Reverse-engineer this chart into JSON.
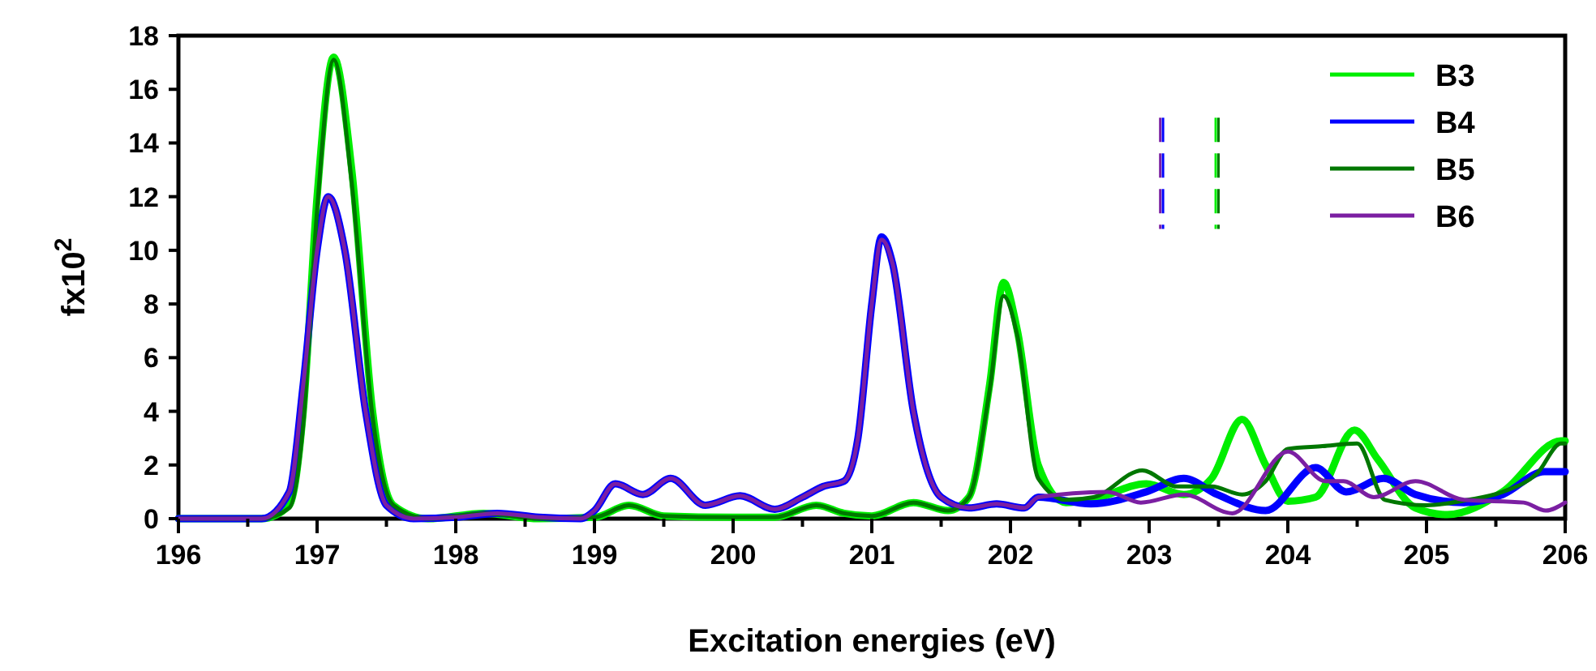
{
  "chart_data": {
    "type": "line",
    "xlabel": "Excitation energies (eV)",
    "ylabel": "fx10$^{2}$",
    "xlim": [
      196,
      206
    ],
    "ylim": [
      0,
      18
    ],
    "xticks": [
      196,
      {
        "value": 196.5,
        "label": null
      },
      197,
      {
        "value": 197.5,
        "label": null
      },
      198,
      {
        "value": 198.5,
        "label": null
      },
      199,
      {
        "value": 199.5,
        "label": null
      },
      200,
      {
        "value": 200.5,
        "label": null
      },
      201,
      {
        "value": 201.5,
        "label": null
      },
      202,
      {
        "value": 202.5,
        "label": null
      },
      203,
      {
        "value": 203.5,
        "label": null
      },
      204,
      {
        "value": 204.5,
        "label": null
      },
      205,
      {
        "value": 205.5,
        "label": null
      },
      206
    ],
    "yticks": [
      0,
      2,
      4,
      6,
      8,
      10,
      12,
      14,
      16,
      18
    ],
    "grid": false,
    "legend": "top right",
    "marker": "none",
    "line_style": "solid",
    "ref_lines": [
      {
        "axis": "x",
        "value": 203.08,
        "color": "#7b1fa2",
        "line_style": "dashed"
      },
      {
        "axis": "x",
        "value": 203.1,
        "color": "#0000ff",
        "line_style": "dashed"
      },
      {
        "axis": "x",
        "value": 203.48,
        "color": "#00ee00",
        "line_style": "dashed"
      },
      {
        "axis": "x",
        "value": 203.5,
        "color": "#007700",
        "line_style": "dashed"
      }
    ],
    "series": [
      {
        "name": "B3",
        "color": "#00ee00",
        "x": [
          196,
          196.6,
          196.8,
          196.9,
          197.0,
          197.12,
          197.25,
          197.4,
          197.55,
          197.8,
          198.2,
          198.6,
          199.0,
          199.25,
          199.5,
          200.0,
          200.3,
          200.6,
          200.8,
          201.0,
          201.3,
          201.55,
          201.7,
          201.85,
          201.95,
          202.05,
          202.2,
          202.4,
          202.58,
          202.98,
          203.25,
          203.45,
          203.67,
          203.84,
          204.0,
          204.2,
          204.48,
          204.65,
          204.92,
          205.15,
          205.55,
          205.97,
          206
        ],
        "values": [
          0,
          0,
          0.5,
          4,
          12,
          17.2,
          13,
          4,
          0.5,
          0,
          0.2,
          0,
          0.05,
          0.5,
          0.1,
          0.05,
          0.05,
          0.5,
          0.2,
          0.1,
          0.6,
          0.3,
          0.8,
          5,
          8.8,
          7,
          2,
          0.6,
          0.7,
          1.3,
          0.9,
          1.5,
          3.7,
          2.0,
          0.65,
          0.8,
          3.3,
          2.2,
          0.4,
          0.15,
          1.0,
          2.9,
          2.9
        ]
      },
      {
        "name": "B4",
        "color": "#0000ff",
        "x": [
          196,
          196.6,
          196.8,
          196.9,
          197.0,
          197.08,
          197.2,
          197.35,
          197.5,
          197.7,
          198.0,
          198.3,
          198.6,
          198.9,
          199.0,
          199.15,
          199.35,
          199.55,
          199.8,
          200.05,
          200.3,
          200.5,
          200.65,
          200.8,
          200.9,
          201.0,
          201.07,
          201.15,
          201.3,
          201.5,
          201.7,
          201.9,
          202.1,
          202.2,
          202.58,
          202.98,
          203.25,
          203.49,
          203.84,
          204.2,
          204.42,
          204.69,
          204.92,
          205.27,
          205.55,
          205.85,
          206
        ],
        "values": [
          0,
          0,
          1,
          5,
          10,
          12.0,
          10,
          4,
          0.5,
          0,
          0.05,
          0.2,
          0.05,
          0,
          0.3,
          1.3,
          0.9,
          1.5,
          0.5,
          0.85,
          0.35,
          0.8,
          1.2,
          1.4,
          3,
          8,
          10.5,
          9.5,
          4,
          0.8,
          0.4,
          0.55,
          0.4,
          0.8,
          0.55,
          1.0,
          1.5,
          0.9,
          0.3,
          1.9,
          1.0,
          1.5,
          0.9,
          0.6,
          0.9,
          1.75,
          1.75
        ]
      },
      {
        "name": "B5",
        "color": "#007700",
        "x": [
          196,
          196.6,
          196.8,
          196.9,
          197.0,
          197.12,
          197.25,
          197.4,
          197.55,
          197.8,
          198.2,
          198.6,
          199.0,
          199.25,
          199.5,
          200.0,
          200.3,
          200.6,
          200.8,
          201.0,
          201.3,
          201.55,
          201.7,
          201.85,
          201.95,
          202.05,
          202.2,
          202.4,
          202.6,
          202.95,
          203.2,
          203.45,
          203.67,
          203.84,
          204.0,
          204.25,
          204.5,
          204.7,
          205.0,
          205.3,
          205.55,
          205.8,
          205.97,
          206
        ],
        "values": [
          0,
          0,
          0.4,
          3.5,
          11.5,
          17.1,
          12.5,
          3.8,
          0.5,
          0,
          0.2,
          0,
          0.05,
          0.5,
          0.1,
          0.05,
          0.05,
          0.5,
          0.2,
          0.1,
          0.6,
          0.3,
          0.8,
          4.8,
          8.3,
          6.8,
          1.5,
          0.7,
          0.8,
          1.8,
          1.2,
          1.2,
          0.9,
          1.4,
          2.6,
          2.7,
          2.8,
          0.7,
          0.5,
          0.7,
          1.0,
          1.7,
          2.8,
          2.8
        ]
      },
      {
        "name": "B6",
        "color": "#7b1fa2",
        "x": [
          196,
          196.6,
          196.8,
          196.9,
          197.0,
          197.08,
          197.2,
          197.35,
          197.5,
          197.7,
          198.0,
          198.3,
          198.6,
          198.9,
          199.0,
          199.15,
          199.35,
          199.55,
          199.8,
          200.05,
          200.3,
          200.5,
          200.65,
          200.8,
          200.9,
          201.0,
          201.07,
          201.15,
          201.3,
          201.5,
          201.7,
          201.9,
          202.1,
          202.2,
          202.7,
          202.94,
          203.25,
          203.6,
          204.0,
          204.27,
          204.4,
          204.62,
          204.92,
          205.27,
          205.7,
          205.86,
          206
        ],
        "values": [
          0,
          0,
          1,
          5,
          10,
          12.0,
          10,
          4,
          0.5,
          0,
          0.05,
          0.2,
          0.05,
          0,
          0.3,
          1.3,
          0.9,
          1.5,
          0.5,
          0.85,
          0.35,
          0.8,
          1.2,
          1.4,
          3,
          8,
          10.4,
          9.5,
          4,
          0.8,
          0.4,
          0.55,
          0.4,
          0.8,
          1.0,
          0.6,
          0.9,
          0.2,
          2.5,
          1.4,
          1.4,
          0.8,
          1.4,
          0.7,
          0.6,
          0.3,
          0.6
        ]
      }
    ]
  }
}
